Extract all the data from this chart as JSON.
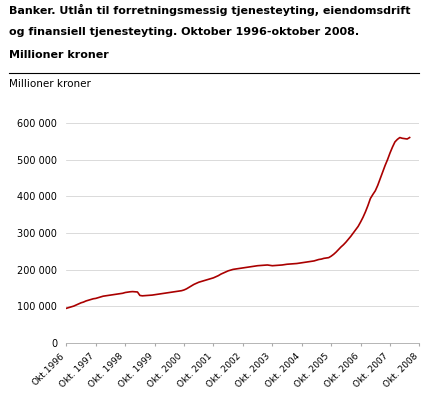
{
  "title_line1": "Banker. Utlån til forretningsmessig tjenesteyting, eiendomsdrift",
  "title_line2": "og finansiell tjenesteyting. Oktober 1996-oktober 2008.",
  "title_line3": "Millioner kroner",
  "ylabel": "Millioner kroner",
  "line_color": "#aa0000",
  "background_color": "#ffffff",
  "grid_color": "#cccccc",
  "ylim": [
    0,
    640000
  ],
  "yticks": [
    0,
    100000,
    200000,
    300000,
    400000,
    500000,
    600000
  ],
  "ytick_labels": [
    "0",
    "100 000",
    "200 000",
    "300 000",
    "400 000",
    "500 000",
    "600 000"
  ],
  "xtick_labels": [
    "Okt.1996",
    "Okt. 1997",
    "Okt. 1998",
    "Okt. 1999",
    "Okt. 2000",
    "Okt. 2001",
    "Okt. 2002",
    "Okt. 2003",
    "Okt. 2004",
    "Okt. 2005",
    "Okt. 2006",
    "Okt. 2007",
    "Okt. 2008"
  ],
  "values": [
    95000,
    97000,
    99000,
    101000,
    104000,
    107000,
    110000,
    112000,
    115000,
    117000,
    119000,
    121000,
    122000,
    124000,
    126000,
    128000,
    129000,
    130000,
    131000,
    132000,
    133000,
    134000,
    135000,
    136000,
    138000,
    139000,
    140000,
    140500,
    140000,
    139500,
    130000,
    129000,
    129500,
    130000,
    130500,
    131000,
    132000,
    133000,
    134000,
    135000,
    136000,
    137000,
    138000,
    139000,
    140000,
    141000,
    142000,
    143000,
    145000,
    148000,
    152000,
    156000,
    160000,
    163000,
    166000,
    168000,
    170000,
    172000,
    174000,
    176000,
    178000,
    181000,
    184000,
    188000,
    191000,
    194000,
    197000,
    199000,
    201000,
    202000,
    203000,
    204000,
    205000,
    206000,
    207000,
    208000,
    209000,
    210000,
    211000,
    211500,
    212000,
    212500,
    213000,
    212000,
    211000,
    211500,
    212000,
    212500,
    213000,
    214000,
    215000,
    215500,
    216000,
    216500,
    217000,
    218000,
    219000,
    220000,
    221000,
    222000,
    223000,
    224000,
    226000,
    228000,
    229000,
    231000,
    232000,
    233000,
    237000,
    242000,
    248000,
    255000,
    262000,
    268000,
    275000,
    283000,
    291000,
    300000,
    309000,
    318000,
    330000,
    343000,
    358000,
    375000,
    394000,
    405000,
    415000,
    430000,
    448000,
    466000,
    484000,
    500000,
    518000,
    534000,
    548000,
    555000,
    560000,
    558000,
    557000,
    556000,
    560000
  ]
}
